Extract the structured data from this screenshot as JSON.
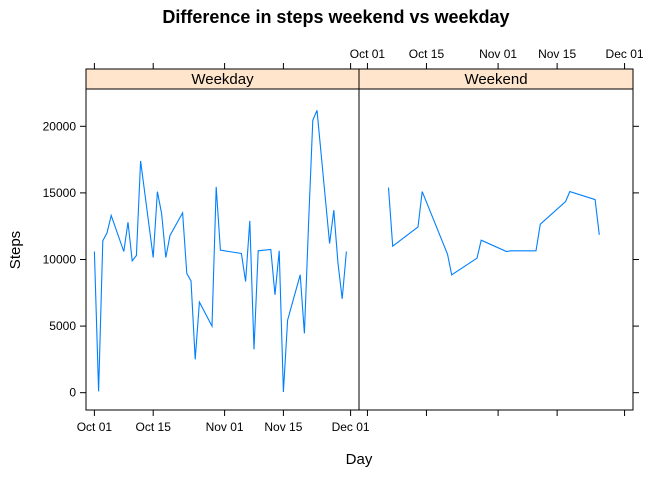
{
  "chart_data": {
    "type": "line",
    "title": "Difference in steps weekend vs weekday",
    "xlabel": "Day",
    "ylabel": "Steps",
    "ylim": [
      -1300,
      22800
    ],
    "y_ticks": [
      0,
      5000,
      10000,
      15000,
      20000
    ],
    "xlim": [
      "2012-09-29",
      "2012-12-03"
    ],
    "x_ticks": [
      {
        "date": "2012-10-01",
        "label": "Oct 01"
      },
      {
        "date": "2012-10-15",
        "label": "Oct 15"
      },
      {
        "date": "2012-11-01",
        "label": "Nov 01"
      },
      {
        "date": "2012-11-15",
        "label": "Nov 15"
      },
      {
        "date": "2012-12-01",
        "label": "Dec 01"
      }
    ],
    "line_color": "#0080ff",
    "strip_color": "#ffe5cc",
    "panels": [
      {
        "name": "Weekday",
        "x": [
          "2012-10-01",
          "2012-10-02",
          "2012-10-03",
          "2012-10-04",
          "2012-10-05",
          "2012-10-08",
          "2012-10-09",
          "2012-10-10",
          "2012-10-11",
          "2012-10-12",
          "2012-10-15",
          "2012-10-16",
          "2012-10-17",
          "2012-10-18",
          "2012-10-19",
          "2012-10-22",
          "2012-10-23",
          "2012-10-24",
          "2012-10-25",
          "2012-10-26",
          "2012-10-29",
          "2012-10-30",
          "2012-10-31",
          "2012-11-01",
          "2012-11-02",
          "2012-11-05",
          "2012-11-06",
          "2012-11-07",
          "2012-11-08",
          "2012-11-09",
          "2012-11-12",
          "2012-11-13",
          "2012-11-14",
          "2012-11-15",
          "2012-11-16",
          "2012-11-19",
          "2012-11-20",
          "2012-11-21",
          "2012-11-22",
          "2012-11-23",
          "2012-11-26",
          "2012-11-27",
          "2012-11-28",
          "2012-11-29",
          "2012-11-30"
        ],
        "y": [
          10600,
          100,
          11400,
          12000,
          13300,
          10600,
          12800,
          9900,
          10300,
          17400,
          10150,
          15100,
          13450,
          10150,
          11800,
          13500,
          8950,
          8400,
          2500,
          6800,
          5000,
          15450,
          10700,
          10650,
          10600,
          10450,
          8350,
          12900,
          3250,
          10650,
          10750,
          7350,
          10650,
          50,
          5450,
          8850,
          4450,
          12750,
          20450,
          21200,
          11200,
          13700,
          9700,
          7050,
          10600
        ]
      },
      {
        "name": "Weekend",
        "x": [
          "2012-10-06",
          "2012-10-07",
          "2012-10-13",
          "2012-10-14",
          "2012-10-20",
          "2012-10-21",
          "2012-10-27",
          "2012-10-28",
          "2012-11-03",
          "2012-11-04",
          "2012-11-10",
          "2012-11-11",
          "2012-11-17",
          "2012-11-18",
          "2012-11-24",
          "2012-11-25"
        ],
        "y": [
          15400,
          11000,
          12450,
          15100,
          10400,
          8850,
          10100,
          11450,
          10600,
          10650,
          10650,
          12650,
          14350,
          15100,
          14500,
          11850
        ]
      }
    ]
  }
}
